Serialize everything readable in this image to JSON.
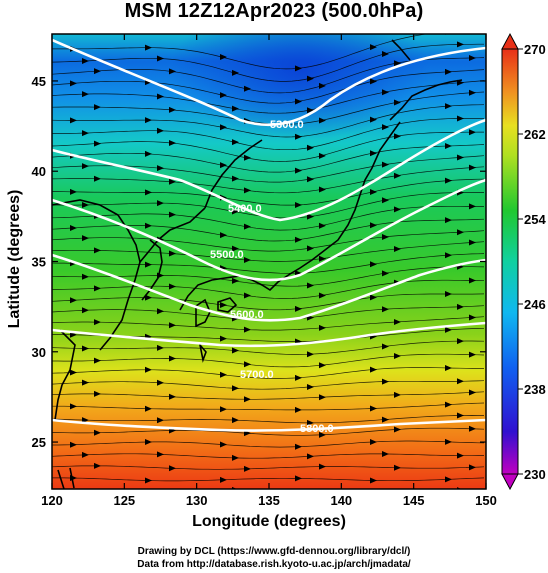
{
  "title": "MSM 12Z12Apr2023 (500.0hPa)",
  "map": {
    "x_axis": {
      "label": "Longitude (degrees)",
      "range": [
        120,
        150
      ],
      "ticks": [
        120,
        125,
        130,
        135,
        140,
        145,
        150
      ]
    },
    "y_axis": {
      "label": "Latitude  (degrees)",
      "range": [
        22.4,
        47.6
      ],
      "ticks": [
        25,
        30,
        35,
        40,
        45
      ]
    },
    "contours": [
      {
        "label": "5300.0"
      },
      {
        "label": "5400.0"
      },
      {
        "label": "5500.0"
      },
      {
        "label": "5600.0"
      },
      {
        "label": "5700.0"
      },
      {
        "label": "5800.0"
      }
    ],
    "colorbar": {
      "ticks": [
        270,
        262,
        254,
        246,
        238,
        230
      ],
      "min": 230,
      "max": 270
    }
  },
  "credits": {
    "line1": "Drawing by DCL (https://www.gfd-dennou.org/library/dcl/)",
    "line2": "Data from http://database.rish.kyoto-u.ac.jp/arch/jmadata/"
  }
}
